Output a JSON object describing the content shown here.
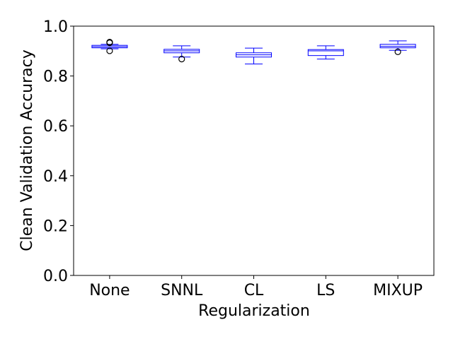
{
  "chart_data": {
    "type": "box",
    "xlabel": "Regularization",
    "ylabel": "Clean Validation Accuracy",
    "ylim": [
      0.0,
      1.0
    ],
    "yticks": [
      "0.0",
      "0.2",
      "0.4",
      "0.6",
      "0.8",
      "1.0"
    ],
    "grid": false,
    "legend": "none",
    "box_color": "#0000ff",
    "median_color": "#0000ff",
    "flier_color": "#000000",
    "categories": [
      "None",
      "SNNL",
      "CL",
      "LS",
      "MIXUP"
    ],
    "boxes": [
      {
        "category": "None",
        "whisker_low": 0.909,
        "q1": 0.913,
        "median": 0.918,
        "q3": 0.923,
        "whisker_high": 0.927,
        "outliers": [
          0.901,
          0.933,
          0.936
        ]
      },
      {
        "category": "SNNL",
        "whisker_low": 0.876,
        "q1": 0.893,
        "median": 0.901,
        "q3": 0.907,
        "whisker_high": 0.921,
        "outliers": [
          0.868
        ]
      },
      {
        "category": "CL",
        "whisker_low": 0.848,
        "q1": 0.876,
        "median": 0.885,
        "q3": 0.893,
        "whisker_high": 0.912,
        "outliers": []
      },
      {
        "category": "LS",
        "whisker_low": 0.868,
        "q1": 0.882,
        "median": 0.901,
        "q3": 0.906,
        "whisker_high": 0.921,
        "outliers": []
      },
      {
        "category": "MIXUP",
        "whisker_low": 0.903,
        "q1": 0.913,
        "median": 0.919,
        "q3": 0.927,
        "whisker_high": 0.941,
        "outliers": [
          0.897
        ]
      }
    ]
  }
}
